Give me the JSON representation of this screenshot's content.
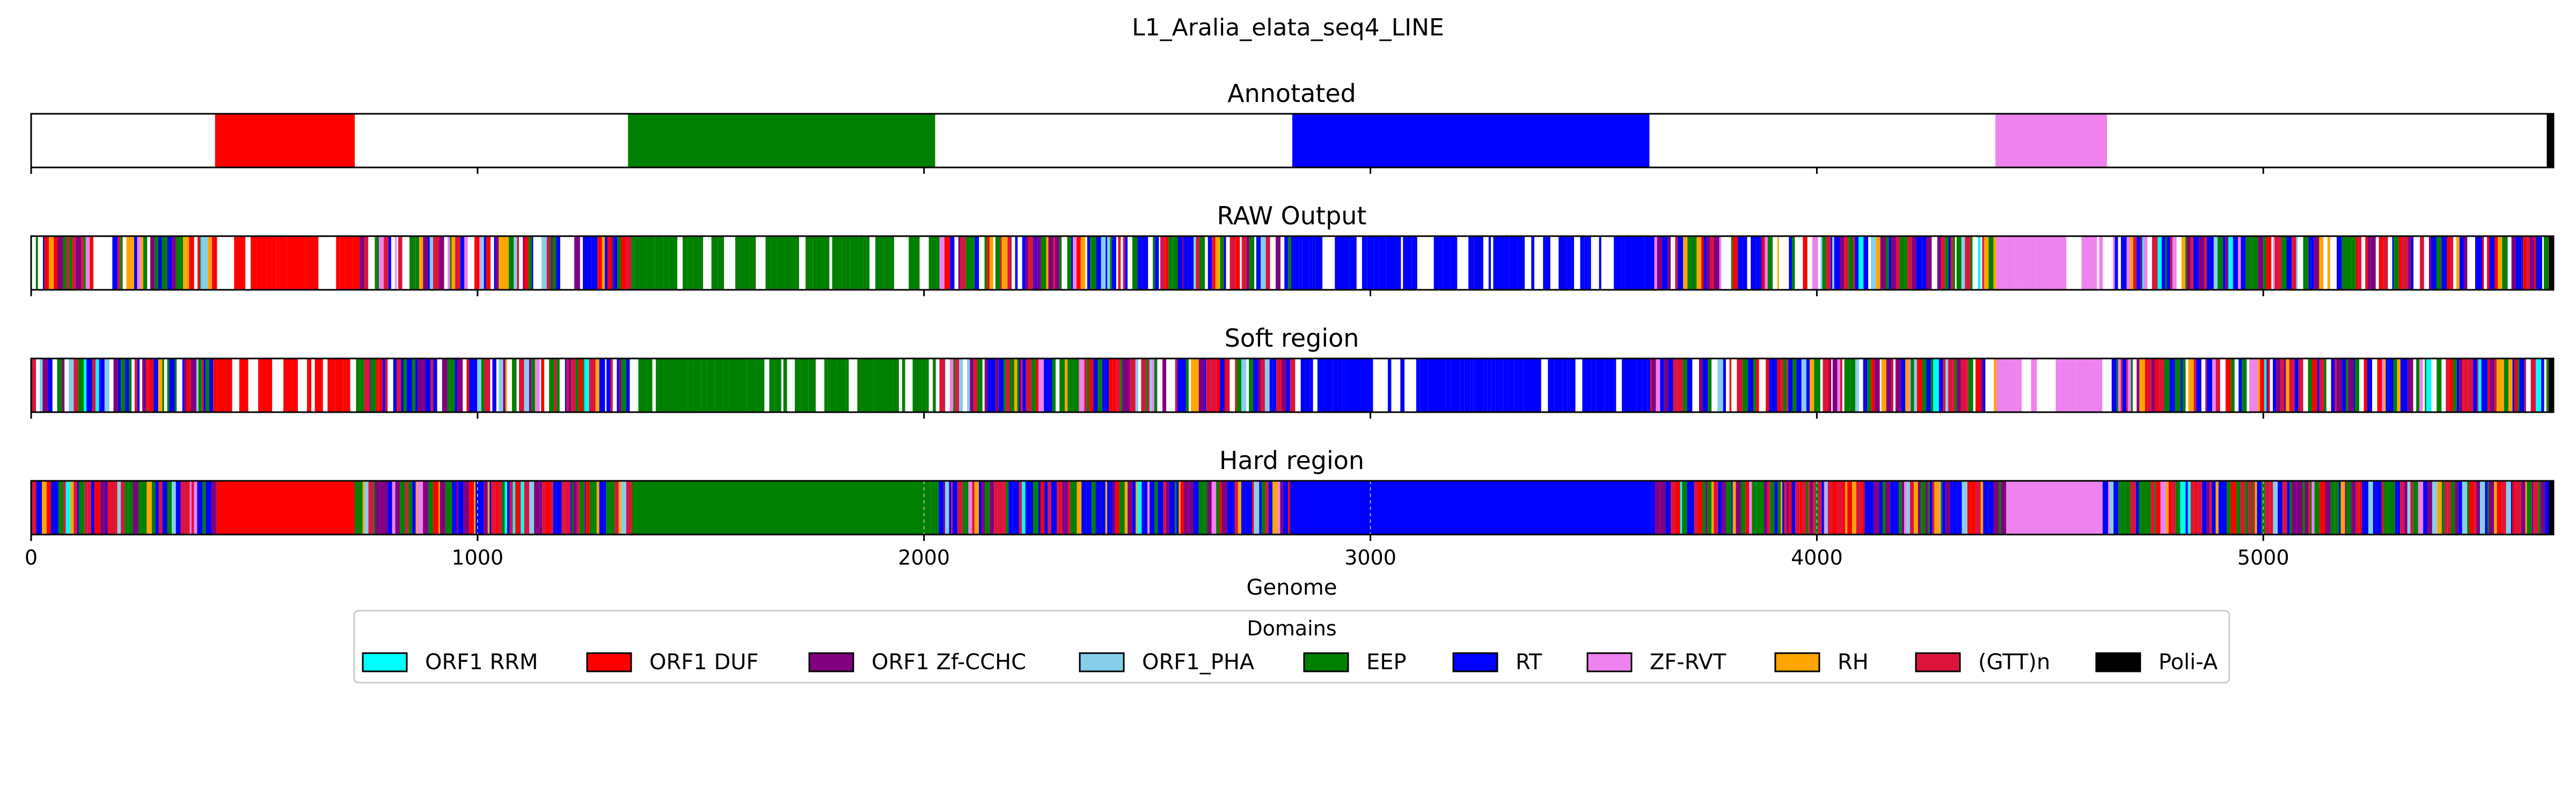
{
  "chart_data": {
    "type": "bar",
    "title": "L1_Aralia_elata_seq4_LINE",
    "xlabel": "Genome",
    "xlim": [
      0,
      5650
    ],
    "xticks": [
      0,
      1000,
      2000,
      3000,
      4000,
      5000
    ],
    "xtick_labels": [
      "0",
      "1000",
      "2000",
      "3000",
      "4000",
      "5000"
    ],
    "legend": {
      "title": "Domains",
      "placement": "below-center",
      "entries": [
        {
          "name": "ORF1 RRM",
          "color": "#00ffff"
        },
        {
          "name": "ORF1 DUF",
          "color": "#ff0000"
        },
        {
          "name": "ORF1 Zf-CCHC",
          "color": "#800080"
        },
        {
          "name": "ORF1_PHA",
          "color": "#87ceeb"
        },
        {
          "name": "EEP",
          "color": "#008000"
        },
        {
          "name": "RT",
          "color": "#0000ff"
        },
        {
          "name": "ZF-RVT",
          "color": "#ee82ee"
        },
        {
          "name": "RH",
          "color": "#ffa500"
        },
        {
          "name": "(GTT)n",
          "color": "#dc143c"
        },
        {
          "name": "Poli-A",
          "color": "#000000"
        }
      ]
    },
    "panels": [
      {
        "name": "Annotated",
        "segments": [
          {
            "domain": "ORF1 DUF",
            "start": 412,
            "end": 725
          },
          {
            "domain": "EEP",
            "start": 1337,
            "end": 2025
          },
          {
            "domain": "RT",
            "start": 2825,
            "end": 3625
          },
          {
            "domain": "ZF-RVT",
            "start": 4400,
            "end": 4650
          },
          {
            "domain": "Poli-A",
            "start": 5635,
            "end": 5650
          }
        ],
        "noise": false
      },
      {
        "name": "RAW Output",
        "regions": [
          {
            "domain": "ORF1 DUF",
            "start": 400,
            "end": 725
          },
          {
            "domain": "EEP",
            "start": 1335,
            "end": 2030
          },
          {
            "domain": "RT",
            "start": 2820,
            "end": 3620
          },
          {
            "domain": "ZF-RVT",
            "start": 4400,
            "end": 4650
          }
        ],
        "noise": true,
        "white_gaps": true
      },
      {
        "name": "Soft region",
        "regions": [
          {
            "domain": "ORF1 DUF",
            "start": 400,
            "end": 725
          },
          {
            "domain": "EEP",
            "start": 1335,
            "end": 2030
          },
          {
            "domain": "RT",
            "start": 2820,
            "end": 3620
          },
          {
            "domain": "ZF-RVT",
            "start": 4400,
            "end": 4650
          }
        ],
        "noise": true,
        "white_gaps": true
      },
      {
        "name": "Hard region",
        "regions": [
          {
            "domain": "ORF1 DUF",
            "start": 410,
            "end": 725
          },
          {
            "domain": "EEP",
            "start": 1335,
            "end": 2015
          },
          {
            "domain": "RT",
            "start": 2820,
            "end": 3630
          },
          {
            "domain": "ZF-RVT",
            "start": 4420,
            "end": 4640
          }
        ],
        "noise": true,
        "white_gaps": false,
        "dashed_lines_at": [
          1000,
          2000,
          3000,
          4000,
          5000
        ]
      }
    ]
  }
}
